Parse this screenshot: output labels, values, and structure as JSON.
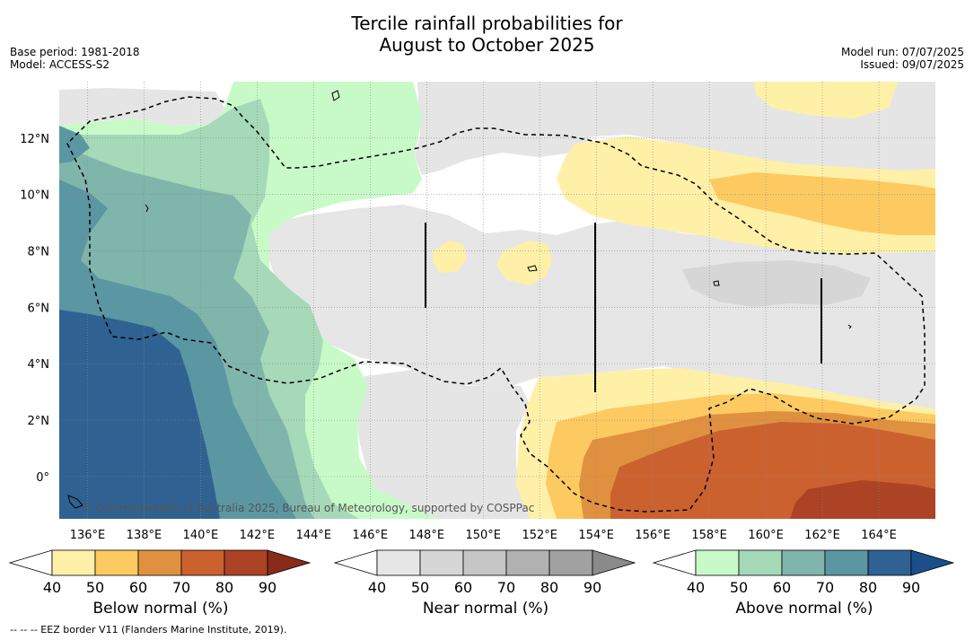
{
  "title": {
    "line1": "Tercile rainfall probabilities for",
    "line2": "August to October 2025"
  },
  "meta": {
    "base_period": "Base period: 1981-2018",
    "model": "Model: ACCESS-S2",
    "model_run": "Model run: 07/07/2025",
    "issued": "Issued: 09/07/2025"
  },
  "map": {
    "lon_range": [
      135,
      166
    ],
    "lat_range": [
      -1.5,
      14
    ],
    "lon_ticks": [
      136,
      138,
      140,
      142,
      144,
      146,
      148,
      150,
      152,
      154,
      156,
      158,
      160,
      162,
      164
    ],
    "lat_ticks": [
      0,
      2,
      4,
      6,
      8,
      10,
      12
    ],
    "lon_tick_labels": [
      "136°E",
      "138°E",
      "140°E",
      "142°E",
      "144°E",
      "146°E",
      "148°E",
      "150°E",
      "152°E",
      "154°E",
      "156°E",
      "158°E",
      "160°E",
      "162°E",
      "164°E"
    ],
    "lat_tick_labels": [
      "0°",
      "2°N",
      "4°N",
      "6°N",
      "8°N",
      "10°N",
      "12°N"
    ],
    "watermark": "© Commonwealth of Australia 2025, Bureau of Meteorology, supported by COSPPac"
  },
  "colorbars": [
    {
      "label": "Below normal (%)",
      "ticks": [
        "40",
        "50",
        "60",
        "70",
        "80",
        "90"
      ],
      "colors": [
        "#fff0a8",
        "#fdca62",
        "#e0913f",
        "#cc6130",
        "#ad4325",
        "#8a2a18"
      ]
    },
    {
      "label": "Near normal (%)",
      "ticks": [
        "40",
        "50",
        "60",
        "70",
        "80",
        "90"
      ],
      "colors": [
        "#e6e6e6",
        "#d6d6d6",
        "#c6c6c6",
        "#b1b1b1",
        "#a1a1a1",
        "#8a8a8a"
      ]
    },
    {
      "label": "Above normal (%)",
      "ticks": [
        "40",
        "50",
        "60",
        "70",
        "80",
        "90"
      ],
      "colors": [
        "#c8fac8",
        "#a5d9b8",
        "#80b5ab",
        "#5b96a3",
        "#2f6293",
        "#1b4f8a"
      ]
    }
  ],
  "footnote": "-- -- -- EEZ border V11 (Flanders Marine Institute, 2019)."
}
